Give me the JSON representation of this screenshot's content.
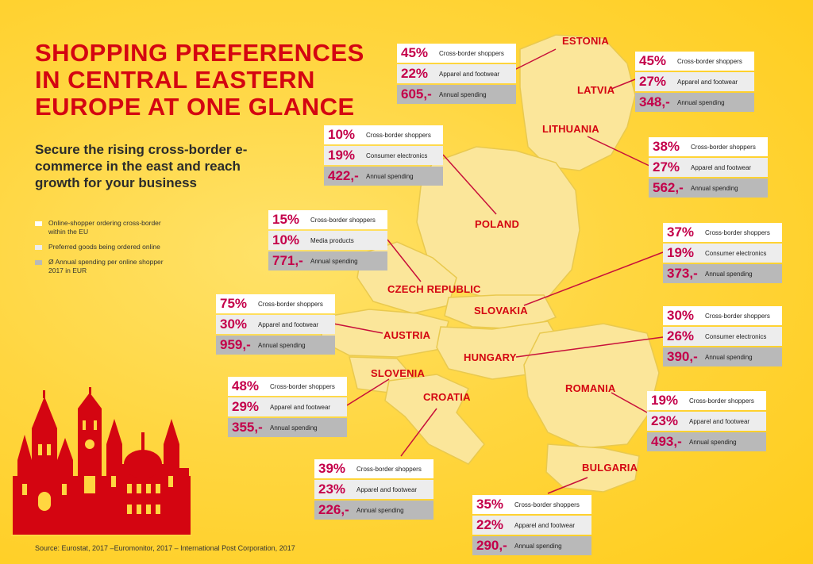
{
  "title": "SHOPPING PREFERENCES IN CENTRAL EASTERN EUROPE AT ONE GLANCE",
  "subtitle": "Secure the rising cross-border e-commerce in the east and reach growth for your business",
  "legend": [
    {
      "text": "Online-shopper ordering cross-border within the EU",
      "color": "#ffffff"
    },
    {
      "text": "Preferred goods being ordered online",
      "color": "#ededed"
    },
    {
      "text": "Ø Annual spending per online shopper 2017 in EUR",
      "color": "#b9b9b9"
    }
  ],
  "source": "Source: Eurostat, 2017 –Euromonitor, 2017 – International Post Corporation, 2017",
  "colors": {
    "accent": "#d40511",
    "value": "#c4004a",
    "land": "#fbe69a",
    "background": "#ffd640"
  },
  "countries": [
    {
      "name": "ESTONIA",
      "stats": [
        {
          "value": "45%",
          "label": "Cross-border shoppers"
        },
        {
          "value": "22%",
          "label": "Apparel and footwear"
        },
        {
          "value": "605,-",
          "label": "Annual spending"
        }
      ]
    },
    {
      "name": "LATVIA",
      "stats": [
        {
          "value": "45%",
          "label": "Cross-border shoppers"
        },
        {
          "value": "27%",
          "label": "Apparel and footwear"
        },
        {
          "value": "348,-",
          "label": "Annual spending"
        }
      ]
    },
    {
      "name": "LITHUANIA",
      "stats": [
        {
          "value": "38%",
          "label": "Cross-border shoppers"
        },
        {
          "value": "27%",
          "label": "Apparel and footwear"
        },
        {
          "value": "562,-",
          "label": "Annual spending"
        }
      ]
    },
    {
      "name": "POLAND",
      "stats": [
        {
          "value": "10%",
          "label": "Cross-border shoppers"
        },
        {
          "value": "19%",
          "label": "Consumer electronics"
        },
        {
          "value": "422,-",
          "label": "Annual spending"
        }
      ]
    },
    {
      "name": "CZECH REPUBLIC",
      "stats": [
        {
          "value": "15%",
          "label": "Cross-border shoppers"
        },
        {
          "value": "10%",
          "label": "Media products"
        },
        {
          "value": "771,-",
          "label": "Annual spending"
        }
      ]
    },
    {
      "name": "SLOVAKIA",
      "stats": [
        {
          "value": "37%",
          "label": "Cross-border shoppers"
        },
        {
          "value": "19%",
          "label": "Consumer electronics"
        },
        {
          "value": "373,-",
          "label": "Annual spending"
        }
      ]
    },
    {
      "name": "AUSTRIA",
      "stats": [
        {
          "value": "75%",
          "label": "Cross-border shoppers"
        },
        {
          "value": "30%",
          "label": "Apparel and footwear"
        },
        {
          "value": "959,-",
          "label": "Annual spending"
        }
      ]
    },
    {
      "name": "HUNGARY",
      "stats": [
        {
          "value": "30%",
          "label": "Cross-border shoppers"
        },
        {
          "value": "26%",
          "label": "Consumer electronics"
        },
        {
          "value": "390,-",
          "label": "Annual spending"
        }
      ]
    },
    {
      "name": "SLOVENIA",
      "stats": [
        {
          "value": "48%",
          "label": "Cross-border shoppers"
        },
        {
          "value": "29%",
          "label": "Apparel and footwear"
        },
        {
          "value": "355,-",
          "label": "Annual spending"
        }
      ]
    },
    {
      "name": "CROATIA",
      "stats": [
        {
          "value": "39%",
          "label": "Cross-border shoppers"
        },
        {
          "value": "23%",
          "label": "Apparel and footwear"
        },
        {
          "value": "226,-",
          "label": "Annual spending"
        }
      ]
    },
    {
      "name": "ROMANIA",
      "stats": [
        {
          "value": "19%",
          "label": "Cross-border shoppers"
        },
        {
          "value": "23%",
          "label": "Apparel and footwear"
        },
        {
          "value": "493,-",
          "label": "Annual spending"
        }
      ]
    },
    {
      "name": "BULGARIA",
      "stats": [
        {
          "value": "35%",
          "label": "Cross-border shoppers"
        },
        {
          "value": "22%",
          "label": "Apparel and footwear"
        },
        {
          "value": "290,-",
          "label": "Annual spending"
        }
      ]
    }
  ]
}
